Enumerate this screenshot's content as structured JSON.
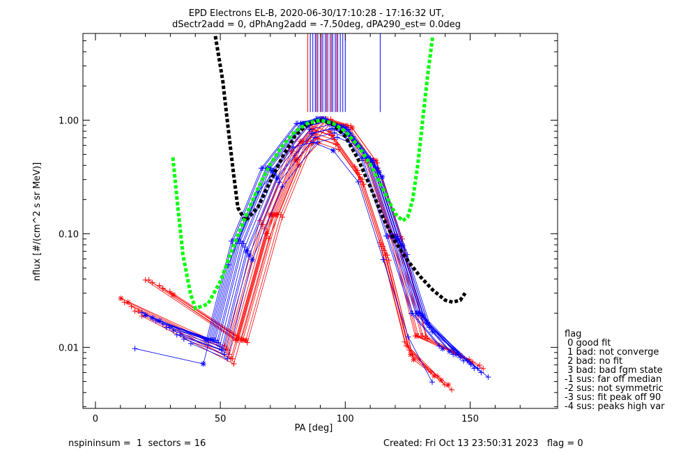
{
  "chart_data": {
    "type": "scatter",
    "title": "EPD Electrons EL-B, 2020-06-30/17:10:28 - 17:16:32 UT,",
    "subtitle": "dSectr2add = 0, dPhAng2add = -7.50deg, dPA290_est=   0.0deg",
    "xlabel": "PA [deg]",
    "ylabel": "nflux [#/(cm^2 s sr MeV)]",
    "xlim": [
      -5,
      185
    ],
    "ylim": [
      0.0029,
      5.8
    ],
    "yscale": "log",
    "xticks": [
      0,
      50,
      100,
      150
    ],
    "yticks": [
      0.01,
      0.1,
      1.0
    ],
    "ytick_labels": [
      "0.01",
      "0.10",
      "1.00"
    ],
    "grid": false,
    "series": [
      {
        "color": "#ff0000",
        "curve": "red-distribution-sample",
        "x": [
          20,
          56,
          70,
          82,
          90,
          98,
          108,
          118,
          128,
          144
        ],
        "y": [
          0.029,
          0.011,
          0.14,
          0.62,
          0.97,
          0.85,
          0.42,
          0.09,
          0.012,
          0.0065
        ]
      },
      {
        "color": "#0000ff",
        "curve": "blue-distribution-sample",
        "x": [
          27,
          48,
          58,
          70,
          84,
          92,
          100,
          110,
          120,
          130,
          146
        ],
        "y": [
          0.015,
          0.011,
          0.082,
          0.36,
          0.89,
          0.98,
          0.83,
          0.44,
          0.091,
          0.019,
          0.0076
        ]
      },
      {
        "color": "#000000",
        "curve": "median-fit",
        "x": [
          48,
          51,
          53,
          55,
          57,
          60,
          65,
          70,
          75,
          80,
          85,
          90,
          95,
          100,
          105,
          110,
          115,
          120,
          125,
          130,
          135,
          140,
          143,
          146,
          148
        ],
        "y": [
          5.5,
          2.2,
          0.9,
          0.38,
          0.17,
          0.13,
          0.17,
          0.29,
          0.48,
          0.73,
          0.92,
          1.0,
          0.92,
          0.72,
          0.46,
          0.26,
          0.14,
          0.085,
          0.058,
          0.042,
          0.032,
          0.026,
          0.025,
          0.026,
          0.03
        ]
      },
      {
        "color": "#00ff00",
        "curve": "symmetric-fit",
        "x": [
          31,
          33,
          35,
          38,
          40,
          45,
          50,
          55,
          60,
          65,
          70,
          75,
          80,
          85,
          90,
          95,
          100,
          105,
          110,
          115,
          120,
          123,
          125,
          127,
          129,
          131,
          133,
          135
        ],
        "y": [
          0.47,
          0.17,
          0.066,
          0.03,
          0.022,
          0.024,
          0.038,
          0.075,
          0.14,
          0.25,
          0.41,
          0.6,
          0.8,
          0.94,
          1.0,
          0.94,
          0.8,
          0.6,
          0.41,
          0.25,
          0.15,
          0.13,
          0.14,
          0.2,
          0.4,
          1.0,
          2.5,
          5.5
        ]
      }
    ],
    "vlines": {
      "color_blue": "#0000ff",
      "color_red": "#ff0000",
      "ymin": 1.18,
      "ymax": 5.8,
      "x_blue": [
        86,
        87,
        88,
        89,
        90,
        91,
        92,
        93,
        94,
        95,
        96,
        97,
        98,
        99,
        100,
        114
      ],
      "x_red": [
        85,
        88.5,
        90.5,
        92.5,
        94.5,
        96.5
      ]
    },
    "legend": {
      "position": "right",
      "title": "flag",
      "entries": [
        " 0 good fit",
        " 1 bad: not converge",
        " 2 bad: no fit",
        " 3 bad: bad fgm state",
        "-1 sus: far off median",
        "-2 sus: not symmetric",
        "-3 sus: fit peak off 90",
        "-4 sus: peaks high var"
      ]
    }
  },
  "footer": {
    "left": "nspininsum =  1  sectors = 16",
    "right": "Created: Fri Oct 13 23:50:31 2023   flag = 0"
  }
}
